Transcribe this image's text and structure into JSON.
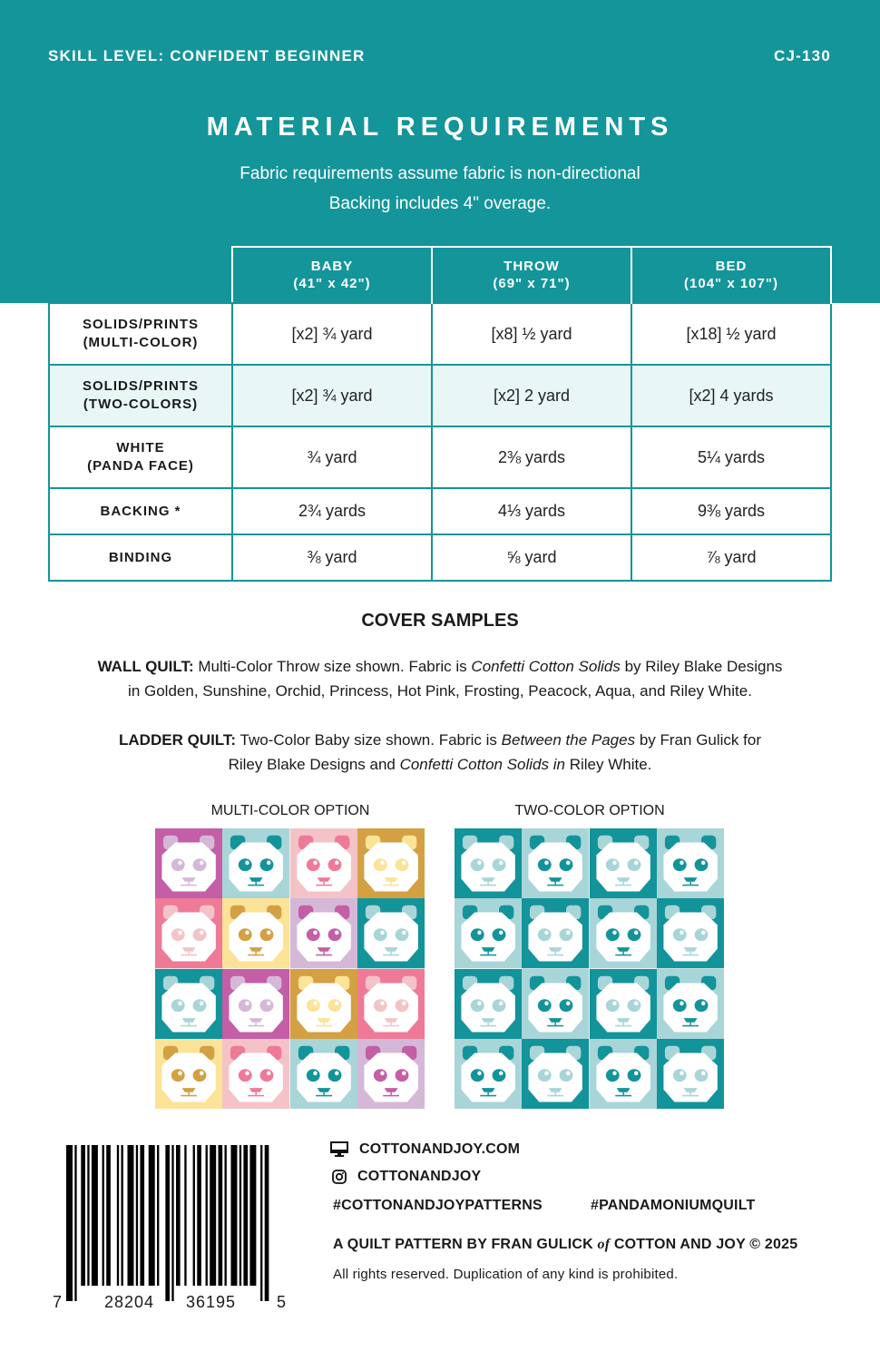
{
  "header": {
    "skill": "SKILL LEVEL: CONFIDENT BEGINNER",
    "code": "CJ-130",
    "title": "MATERIAL REQUIREMENTS",
    "note1": "Fabric requirements assume fabric is non-directional",
    "note2": "Backing includes 4\" overage."
  },
  "colors": {
    "teal": "#13959a",
    "light": "#e8f6f6"
  },
  "table": {
    "columns": [
      {
        "name": "BABY",
        "size": "(41\" x 42\")"
      },
      {
        "name": "THROW",
        "size": "(69\" x 71\")"
      },
      {
        "name": "BED",
        "size": "(104\" x 107\")"
      }
    ],
    "rows": [
      {
        "l1": "SOLIDS/PRINTS",
        "l2": "(MULTI-COLOR)",
        "v": [
          "[x2] ¾ yard",
          "[x8] ½ yard",
          "[x18] ½ yard"
        ]
      },
      {
        "l1": "SOLIDS/PRINTS",
        "l2": "(TWO-COLORS)",
        "v": [
          "[x2] ¾ yard",
          "[x2] 2 yard",
          "[x2] 4 yards"
        ]
      },
      {
        "l1": "WHITE",
        "l2": "(PANDA FACE)",
        "v": [
          "¾ yard",
          "2⅜ yards",
          "5¼ yards"
        ]
      },
      {
        "l1": "BACKING *",
        "l2": "",
        "v": [
          "2¾ yards",
          "4⅓ yards",
          "9⅜ yards"
        ]
      },
      {
        "l1": "BINDING",
        "l2": "",
        "v": [
          "⅜ yard",
          "⅝ yard",
          "⅞ yard"
        ]
      }
    ]
  },
  "cover": {
    "title": "COVER SAMPLES",
    "wall_label": "WALL QUILT:",
    "wall_a": " Multi-Color Throw size shown. Fabric is ",
    "wall_fabric": "Confetti Cotton Solids",
    "wall_b": " by Riley Blake Designs",
    "wall_c": "in Golden, Sunshine, Orchid, Princess, Hot Pink, Frosting, Peacock, Aqua, and Riley White.",
    "ladder_label": "LADDER QUILT:",
    "ladder_a": " Two-Color Baby size shown. Fabric is ",
    "ladder_fabric": "Between the Pages",
    "ladder_b": " by Fran Gulick for",
    "ladder_c": "Riley Blake Designs and ",
    "ladder_fabric2": "Confetti Cotton Solids in",
    "ladder_d": " Riley White."
  },
  "quilts": [
    {
      "label": "MULTI-COLOR OPTION",
      "blocks": [
        [
          "#c45ea6",
          "#d5b8d8"
        ],
        [
          "#a8d5d8",
          "#13939a"
        ],
        [
          "#f4c3c8",
          "#ee7a98"
        ],
        [
          "#d3a043",
          "#fbe397"
        ],
        [
          "#ee7a98",
          "#f4c3c8"
        ],
        [
          "#fbe397",
          "#d3a043"
        ],
        [
          "#d5b8d8",
          "#c45ea6"
        ],
        [
          "#13939a",
          "#a8d5d8"
        ],
        [
          "#13939a",
          "#a8d5d8"
        ],
        [
          "#c45ea6",
          "#d5b8d8"
        ],
        [
          "#d3a043",
          "#fbe397"
        ],
        [
          "#ee7a98",
          "#f4c3c8"
        ],
        [
          "#fbe397",
          "#d3a043"
        ],
        [
          "#f4c3c8",
          "#ee7a98"
        ],
        [
          "#a8d5d8",
          "#13939a"
        ],
        [
          "#d5b8d8",
          "#c45ea6"
        ]
      ]
    },
    {
      "label": "TWO-COLOR OPTION",
      "blocks": [
        [
          "#13939a",
          "#a8d5d8"
        ],
        [
          "#a8d5d8",
          "#13939a"
        ],
        [
          "#13939a",
          "#a8d5d8"
        ],
        [
          "#a8d5d8",
          "#13939a"
        ],
        [
          "#a8d5d8",
          "#13939a"
        ],
        [
          "#13939a",
          "#a8d5d8"
        ],
        [
          "#a8d5d8",
          "#13939a"
        ],
        [
          "#13939a",
          "#a8d5d8"
        ],
        [
          "#13939a",
          "#a8d5d8"
        ],
        [
          "#a8d5d8",
          "#13939a"
        ],
        [
          "#13939a",
          "#a8d5d8"
        ],
        [
          "#a8d5d8",
          "#13939a"
        ],
        [
          "#a8d5d8",
          "#13939a"
        ],
        [
          "#13939a",
          "#a8d5d8"
        ],
        [
          "#a8d5d8",
          "#13939a"
        ],
        [
          "#13939a",
          "#a8d5d8"
        ]
      ]
    }
  ],
  "barcode": {
    "d1": "7",
    "d2": "28204",
    "d3": "36195",
    "d4": "5"
  },
  "footer": {
    "website": "COTTONANDJOY.COM",
    "instagram": "COTTONANDJOY",
    "tag1": "#COTTONANDJOYPATTERNS",
    "tag2": "#PANDAMONIUMQUILT",
    "credit_a": "A QUILT PATTERN BY FRAN GULICK ",
    "credit_of": "of",
    "credit_b": " COTTON AND JOY © 2025",
    "rights": "All rights reserved. Duplication of any kind is prohibited."
  }
}
